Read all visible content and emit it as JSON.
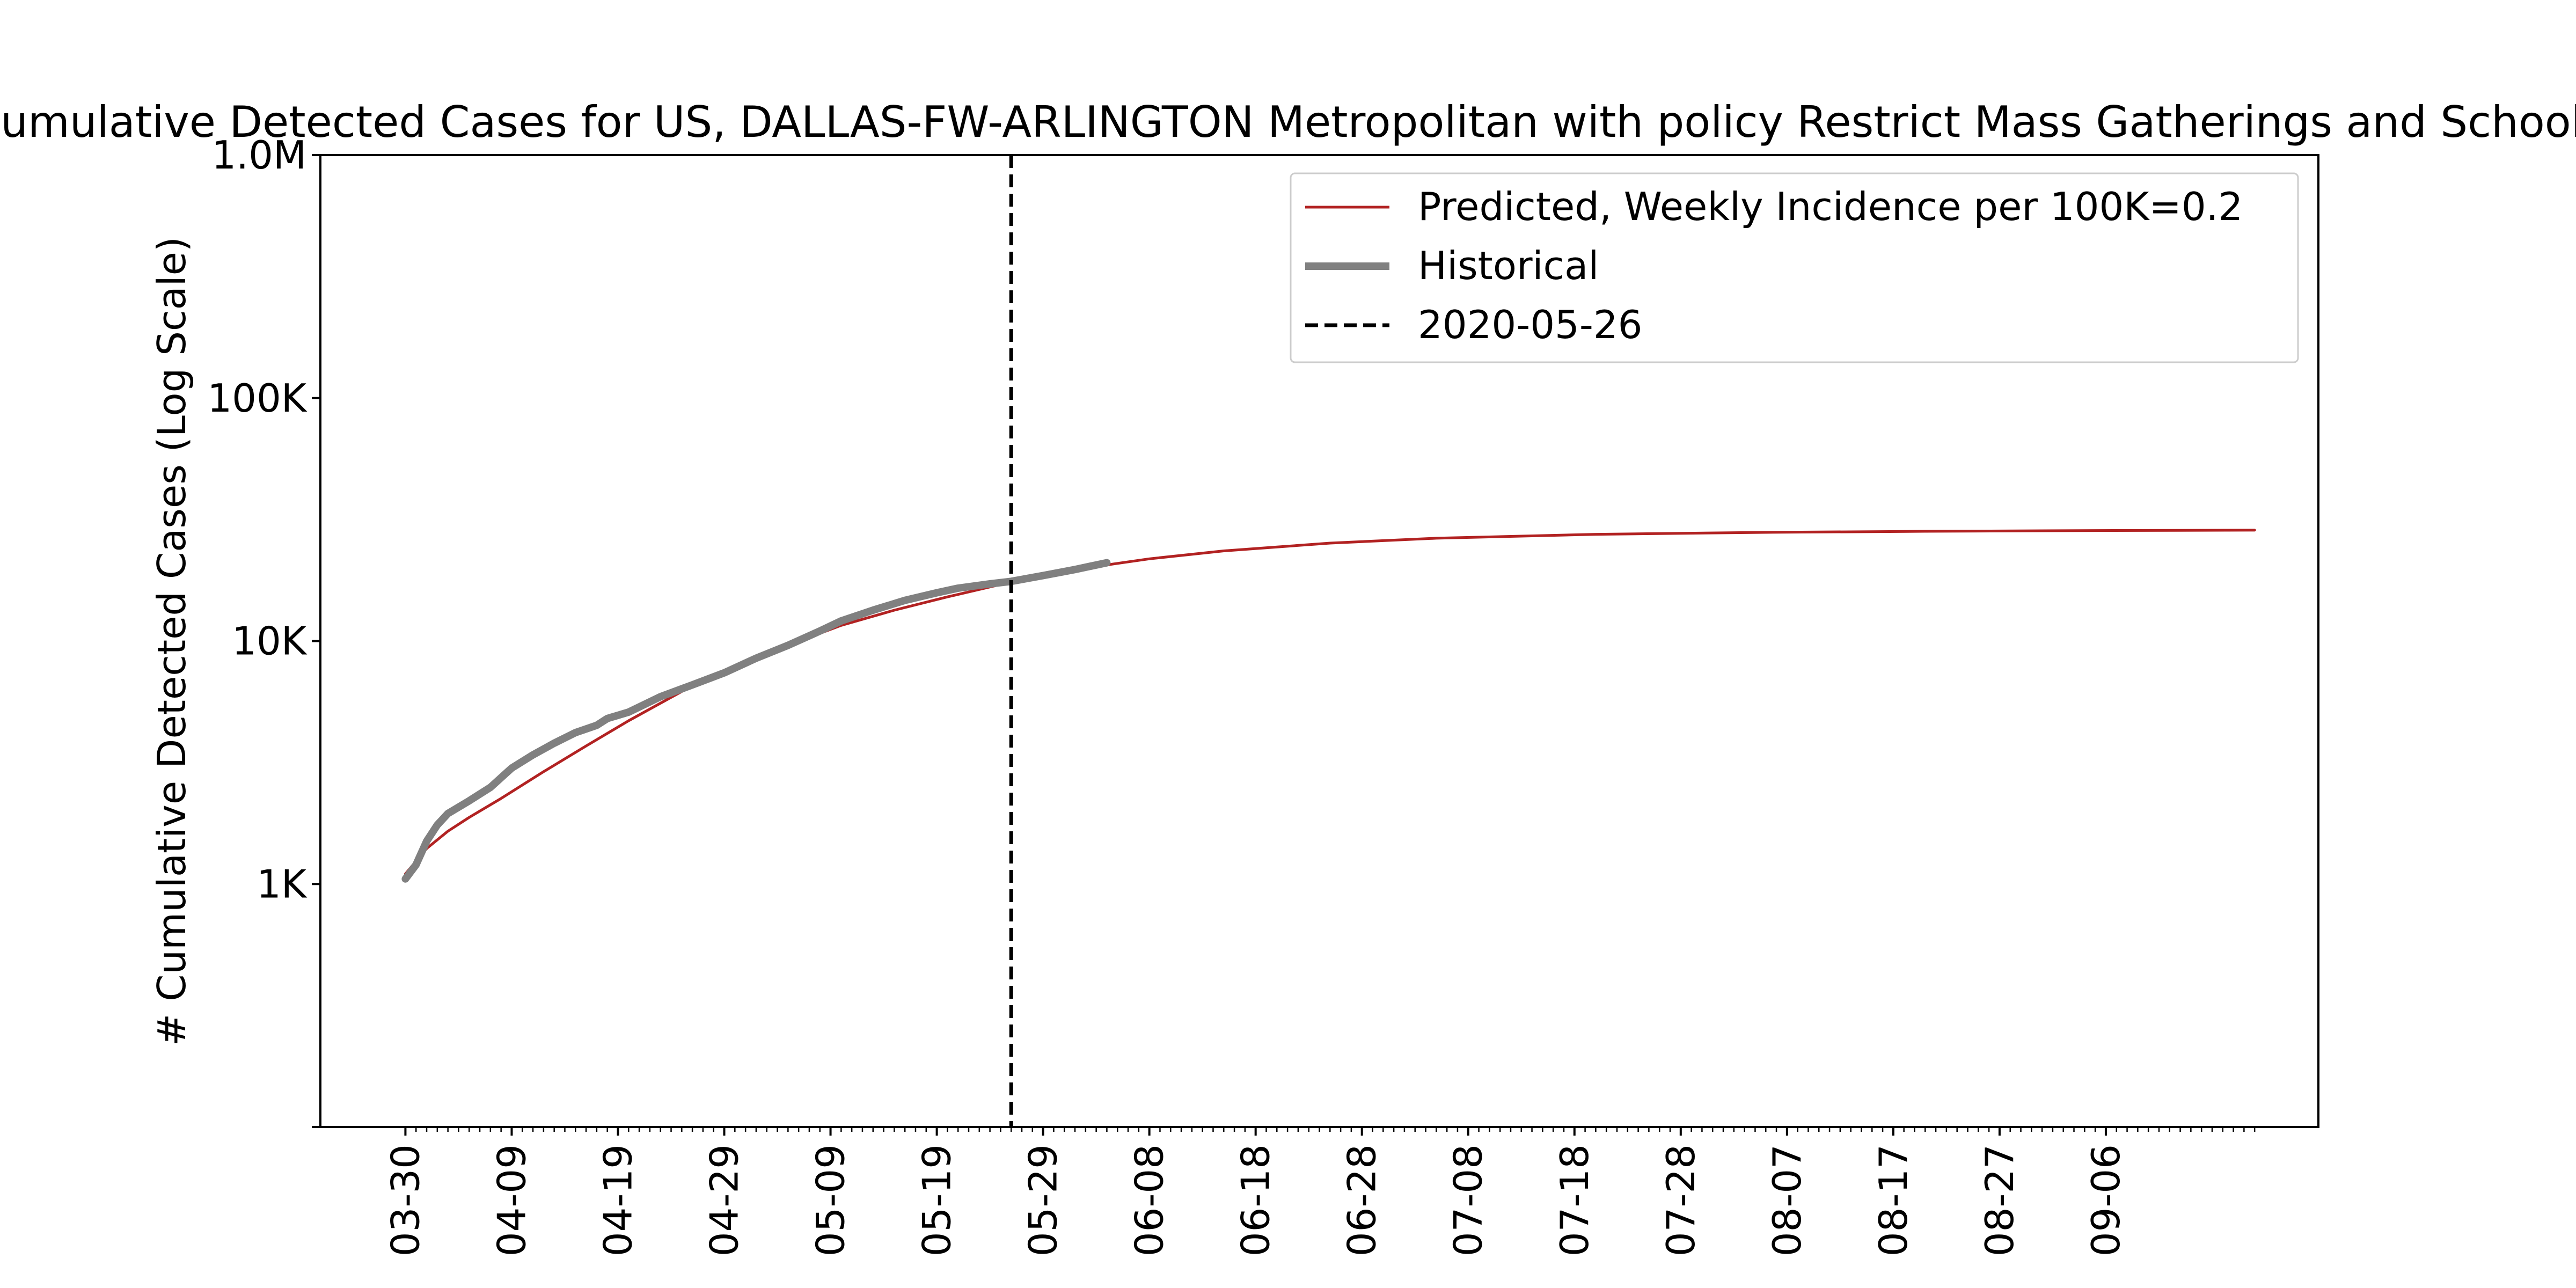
{
  "chart_data": {
    "type": "line",
    "title": "Cumulative Detected Cases for US, DALLAS-FW-ARLINGTON Metropolitan with policy Restrict Mass Gatherings and Schools",
    "ylabel": "# Cumulative Detected Cases (Log Scale)",
    "xlabel": "",
    "y_scale": "log",
    "ylim": [
      100,
      1000000
    ],
    "xlim": [
      "2020-03-22",
      "2020-09-26"
    ],
    "y_ticks": [
      {
        "value": 1000,
        "label": "1K"
      },
      {
        "value": 10000,
        "label": "10K"
      },
      {
        "value": 100000,
        "label": "100K"
      },
      {
        "value": 1000000,
        "label": "1.0M"
      }
    ],
    "x_tick_labels": [
      "03-30",
      "04-09",
      "04-19",
      "04-29",
      "05-09",
      "05-19",
      "05-29",
      "06-08",
      "06-18",
      "06-28",
      "07-08",
      "07-18",
      "07-28",
      "08-07",
      "08-17",
      "08-27",
      "09-06"
    ],
    "x_tick_dates": [
      "2020-03-30",
      "2020-04-09",
      "2020-04-19",
      "2020-04-29",
      "2020-05-09",
      "2020-05-19",
      "2020-05-29",
      "2020-06-08",
      "2020-06-18",
      "2020-06-28",
      "2020-07-08",
      "2020-07-18",
      "2020-07-28",
      "2020-08-07",
      "2020-08-17",
      "2020-08-27",
      "2020-09-06"
    ],
    "minor_ticks": "daily",
    "grid": false,
    "legend_position": "top-right",
    "vline": {
      "date": "2020-05-26",
      "label": "2020-05-26",
      "color": "#000000",
      "style": "dashed"
    },
    "series": [
      {
        "name": "Predicted, Weekly Incidence per 100K=0.2",
        "color": "#b22222",
        "style": "solid",
        "x": [
          "2020-03-30",
          "2020-04-01",
          "2020-04-03",
          "2020-04-05",
          "2020-04-08",
          "2020-04-12",
          "2020-04-16",
          "2020-04-20",
          "2020-04-25",
          "2020-04-30",
          "2020-05-05",
          "2020-05-10",
          "2020-05-15",
          "2020-05-20",
          "2020-05-26",
          "2020-06-01",
          "2020-06-08",
          "2020-06-15",
          "2020-06-25",
          "2020-07-05",
          "2020-07-20",
          "2020-08-05",
          "2020-08-20",
          "2020-09-05",
          "2020-09-20"
        ],
        "y": [
          1100,
          1400,
          1650,
          1880,
          2250,
          2900,
          3700,
          4700,
          6200,
          7900,
          9600,
          11600,
          13400,
          15200,
          17500,
          19700,
          21800,
          23500,
          25300,
          26500,
          27500,
          28000,
          28300,
          28500,
          28600
        ]
      },
      {
        "name": "Historical",
        "color": "#808080",
        "style": "solid",
        "x": [
          "2020-03-30",
          "2020-03-31",
          "2020-04-01",
          "2020-04-02",
          "2020-04-03",
          "2020-04-05",
          "2020-04-07",
          "2020-04-09",
          "2020-04-11",
          "2020-04-13",
          "2020-04-15",
          "2020-04-17",
          "2020-04-18",
          "2020-04-20",
          "2020-04-23",
          "2020-04-26",
          "2020-04-29",
          "2020-05-02",
          "2020-05-05",
          "2020-05-08",
          "2020-05-10",
          "2020-05-13",
          "2020-05-16",
          "2020-05-19",
          "2020-05-21",
          "2020-05-24",
          "2020-05-26",
          "2020-05-29",
          "2020-06-01",
          "2020-06-04"
        ],
        "y": [
          1050,
          1200,
          1500,
          1750,
          1950,
          2200,
          2500,
          3000,
          3400,
          3800,
          4200,
          4500,
          4800,
          5100,
          5900,
          6600,
          7400,
          8500,
          9600,
          11000,
          12100,
          13400,
          14700,
          15800,
          16500,
          17200,
          17600,
          18600,
          19700,
          21000
        ]
      }
    ]
  }
}
